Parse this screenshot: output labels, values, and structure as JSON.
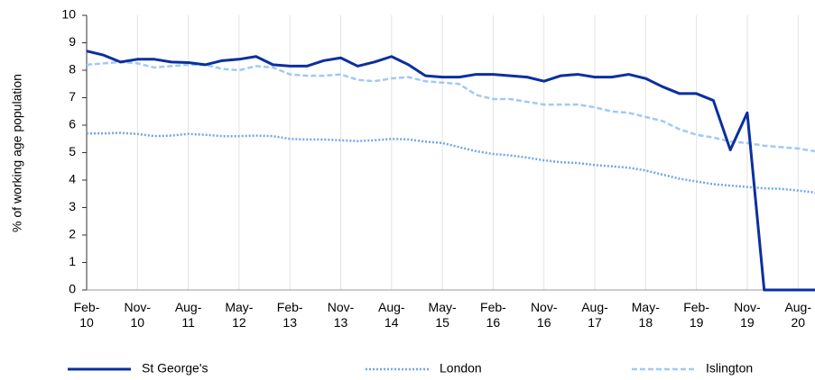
{
  "chart_data": {
    "type": "line",
    "y_label": "% of working age population",
    "categories": [
      "Feb-10",
      null,
      null,
      "Nov-10",
      null,
      null,
      "Aug-11",
      null,
      null,
      "May-12",
      null,
      null,
      "Feb-13",
      null,
      null,
      "Nov-13",
      null,
      null,
      "Aug-14",
      null,
      null,
      "May-15",
      null,
      null,
      "Feb-16",
      null,
      null,
      "Nov-16",
      null,
      null,
      "Aug-17",
      null,
      null,
      "May-18",
      null,
      null,
      "Feb-19",
      null,
      null,
      "Nov-19",
      null,
      null,
      "Aug-20",
      null
    ],
    "series": [
      {
        "name": "St George's",
        "color": "#0b2fa0",
        "style": "solid",
        "values": [
          8.7,
          8.55,
          8.3,
          8.4,
          8.4,
          8.3,
          8.28,
          8.2,
          8.35,
          8.4,
          8.5,
          8.2,
          8.15,
          8.15,
          8.35,
          8.45,
          8.15,
          8.3,
          8.5,
          8.2,
          7.8,
          7.75,
          7.75,
          7.85,
          7.85,
          7.8,
          7.75,
          7.6,
          7.8,
          7.85,
          7.75,
          7.75,
          7.85,
          7.7,
          7.4,
          7.15,
          7.15,
          6.9,
          5.1,
          6.45,
          0,
          0,
          0,
          0
        ]
      },
      {
        "name": "London",
        "color": "#6fa8e6",
        "style": "dotted",
        "values": [
          5.7,
          5.7,
          5.72,
          5.68,
          5.6,
          5.62,
          5.68,
          5.65,
          5.6,
          5.6,
          5.62,
          5.6,
          5.5,
          5.48,
          5.48,
          5.45,
          5.42,
          5.45,
          5.5,
          5.48,
          5.4,
          5.35,
          5.2,
          5.05,
          4.95,
          4.9,
          4.82,
          4.72,
          4.65,
          4.62,
          4.55,
          4.5,
          4.45,
          4.35,
          4.2,
          4.05,
          3.95,
          3.85,
          3.8,
          3.75,
          3.7,
          3.68,
          3.62,
          3.55
        ]
      },
      {
        "name": "Islington",
        "color": "#9fcaf5",
        "style": "dashed",
        "values": [
          8.2,
          8.25,
          8.3,
          8.25,
          8.1,
          8.15,
          8.2,
          8.2,
          8.05,
          8.0,
          8.15,
          8.1,
          7.85,
          7.8,
          7.8,
          7.85,
          7.65,
          7.6,
          7.7,
          7.75,
          7.6,
          7.55,
          7.5,
          7.1,
          6.95,
          6.95,
          6.85,
          6.75,
          6.75,
          6.75,
          6.65,
          6.5,
          6.45,
          6.3,
          6.15,
          5.85,
          5.65,
          5.55,
          5.4,
          5.35,
          5.25,
          5.2,
          5.15,
          5.05
        ]
      }
    ],
    "ylim": [
      0,
      10
    ],
    "yticks": [
      0,
      1,
      2,
      3,
      4,
      5,
      6,
      7,
      8,
      9,
      10
    ],
    "grid": "x",
    "legend": "bottom"
  }
}
